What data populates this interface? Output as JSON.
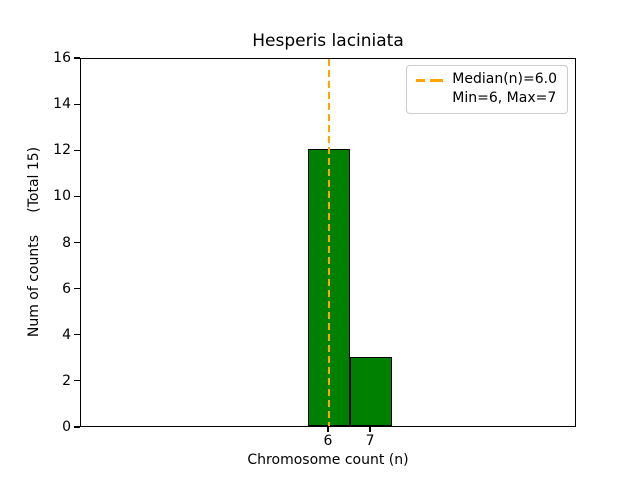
{
  "chart_data": {
    "type": "bar",
    "title": "Hesperis laciniata",
    "xlabel": "Chromosome count (n)",
    "ylabel": "Num of counts     (Total 15)",
    "x": [
      6,
      7
    ],
    "values": [
      12,
      3
    ],
    "bin_width": 1,
    "xlim": [
      0.1,
      11.9
    ],
    "ylim": [
      0,
      16
    ],
    "xticks": [
      6,
      7
    ],
    "yticks": [
      0,
      2,
      4,
      6,
      8,
      10,
      12,
      14,
      16
    ],
    "grid": false,
    "median": {
      "value": 6.0
    },
    "legend": {
      "position": "upper right",
      "entries": [
        {
          "swatch": "orange-dashed-line",
          "label": "Median(n)=6.0"
        },
        {
          "swatch": "none",
          "label": "Min=6, Max=7"
        }
      ]
    },
    "colors": {
      "bar_fill": "#008000",
      "bar_edge": "#000000",
      "median_line": "#FFA500",
      "legend_border": "#cccccc",
      "text": "#000000"
    }
  }
}
